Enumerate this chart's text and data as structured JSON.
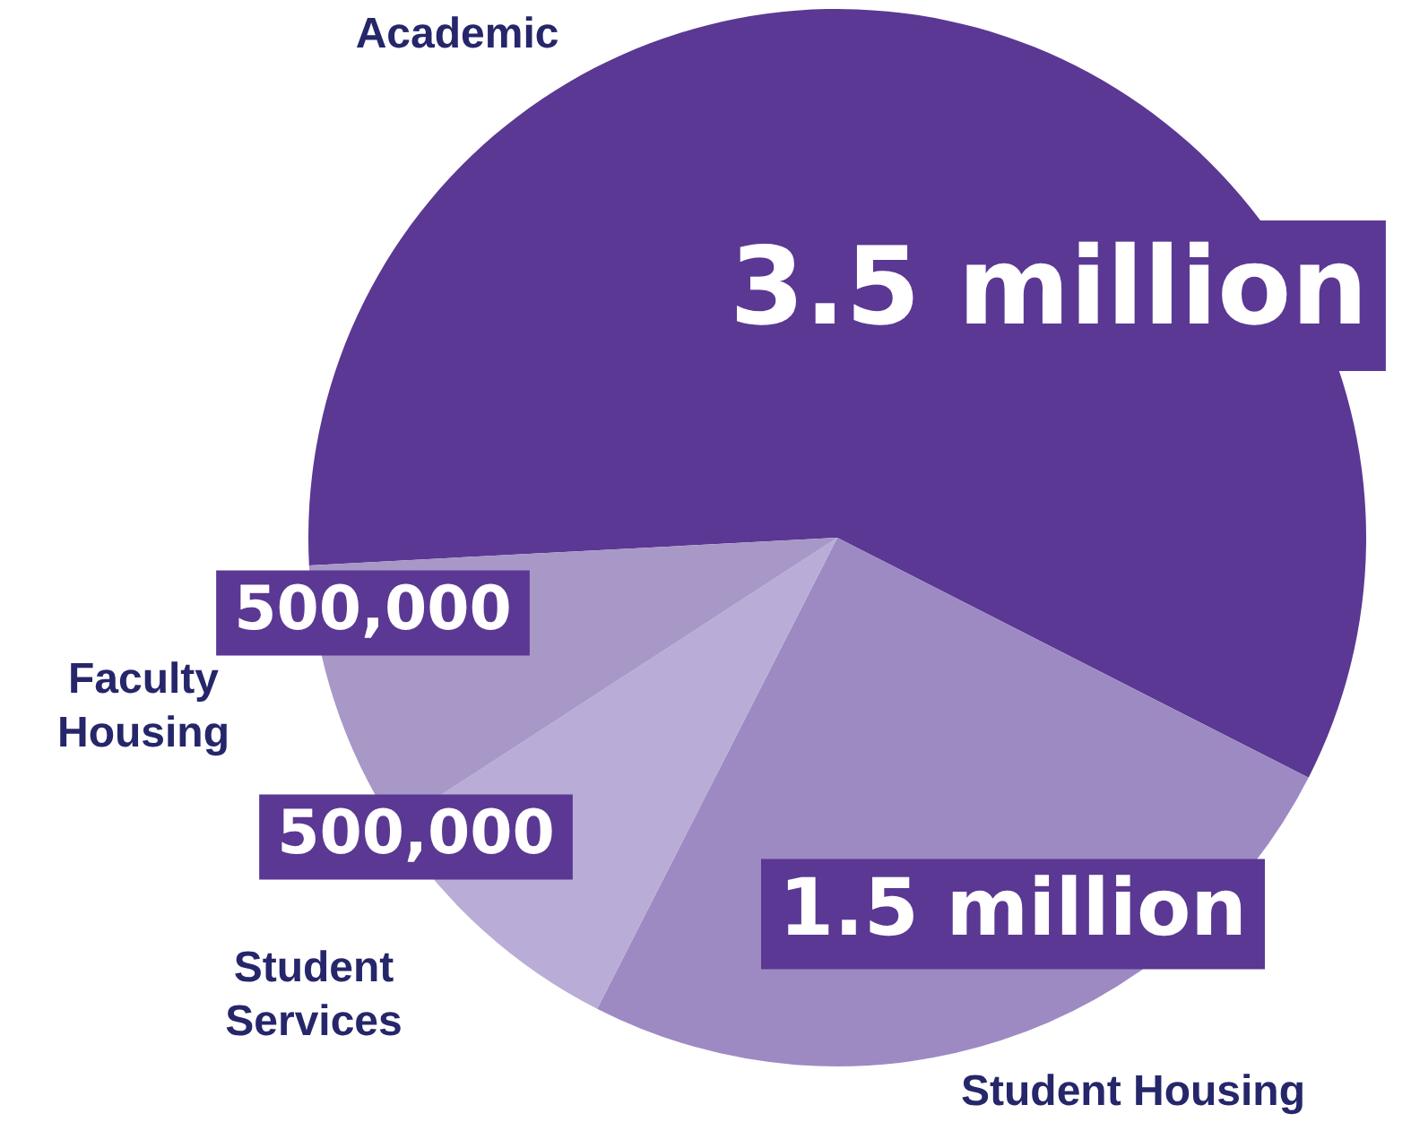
{
  "chart_data": {
    "type": "pie",
    "categories": [
      "Academic",
      "Student Housing",
      "Student Services",
      "Faculty Housing"
    ],
    "values": [
      3500000,
      1500000,
      500000,
      500000
    ],
    "value_labels": [
      "3.5 million",
      "1.5 million",
      "500,000",
      "500,000"
    ],
    "colors": [
      "#5b3893",
      "#9d8ac3",
      "#b9acd6",
      "#a898c8"
    ],
    "legend": false
  }
}
